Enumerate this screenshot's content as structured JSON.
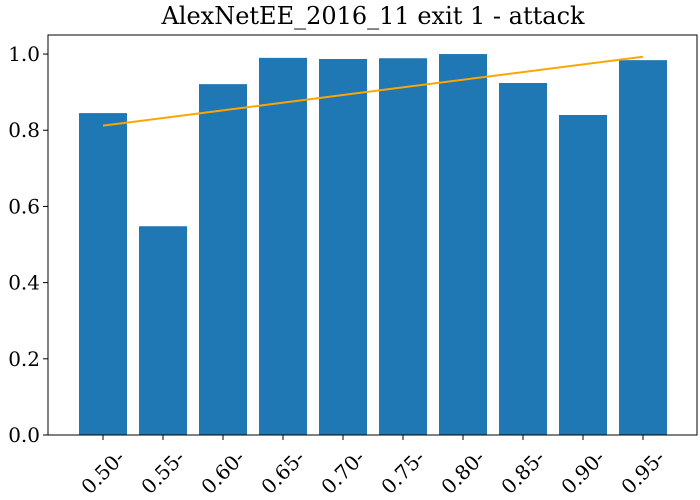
{
  "chart_data": {
    "type": "bar",
    "title": "AlexNetEE_2016_11 exit 1 - attack",
    "xlabel": "",
    "ylabel": "",
    "categories": [
      "0.50-",
      "0.55-",
      "0.60-",
      "0.65-",
      "0.70-",
      "0.75-",
      "0.80-",
      "0.85-",
      "0.90-",
      "0.95-"
    ],
    "values": [
      0.845,
      0.548,
      0.921,
      0.99,
      0.987,
      0.989,
      1.0,
      0.924,
      0.84,
      0.984
    ],
    "trend_line": {
      "start": 0.812,
      "end": 0.993
    },
    "ylim": [
      0,
      1.05
    ],
    "yticks": [
      "0.0",
      "0.2",
      "0.4",
      "0.6",
      "0.8",
      "1.0"
    ],
    "grid": false,
    "legend": "none",
    "colors": {
      "bar": "#1f77b4",
      "trend": "#ffa500",
      "axis": "#000000"
    }
  }
}
